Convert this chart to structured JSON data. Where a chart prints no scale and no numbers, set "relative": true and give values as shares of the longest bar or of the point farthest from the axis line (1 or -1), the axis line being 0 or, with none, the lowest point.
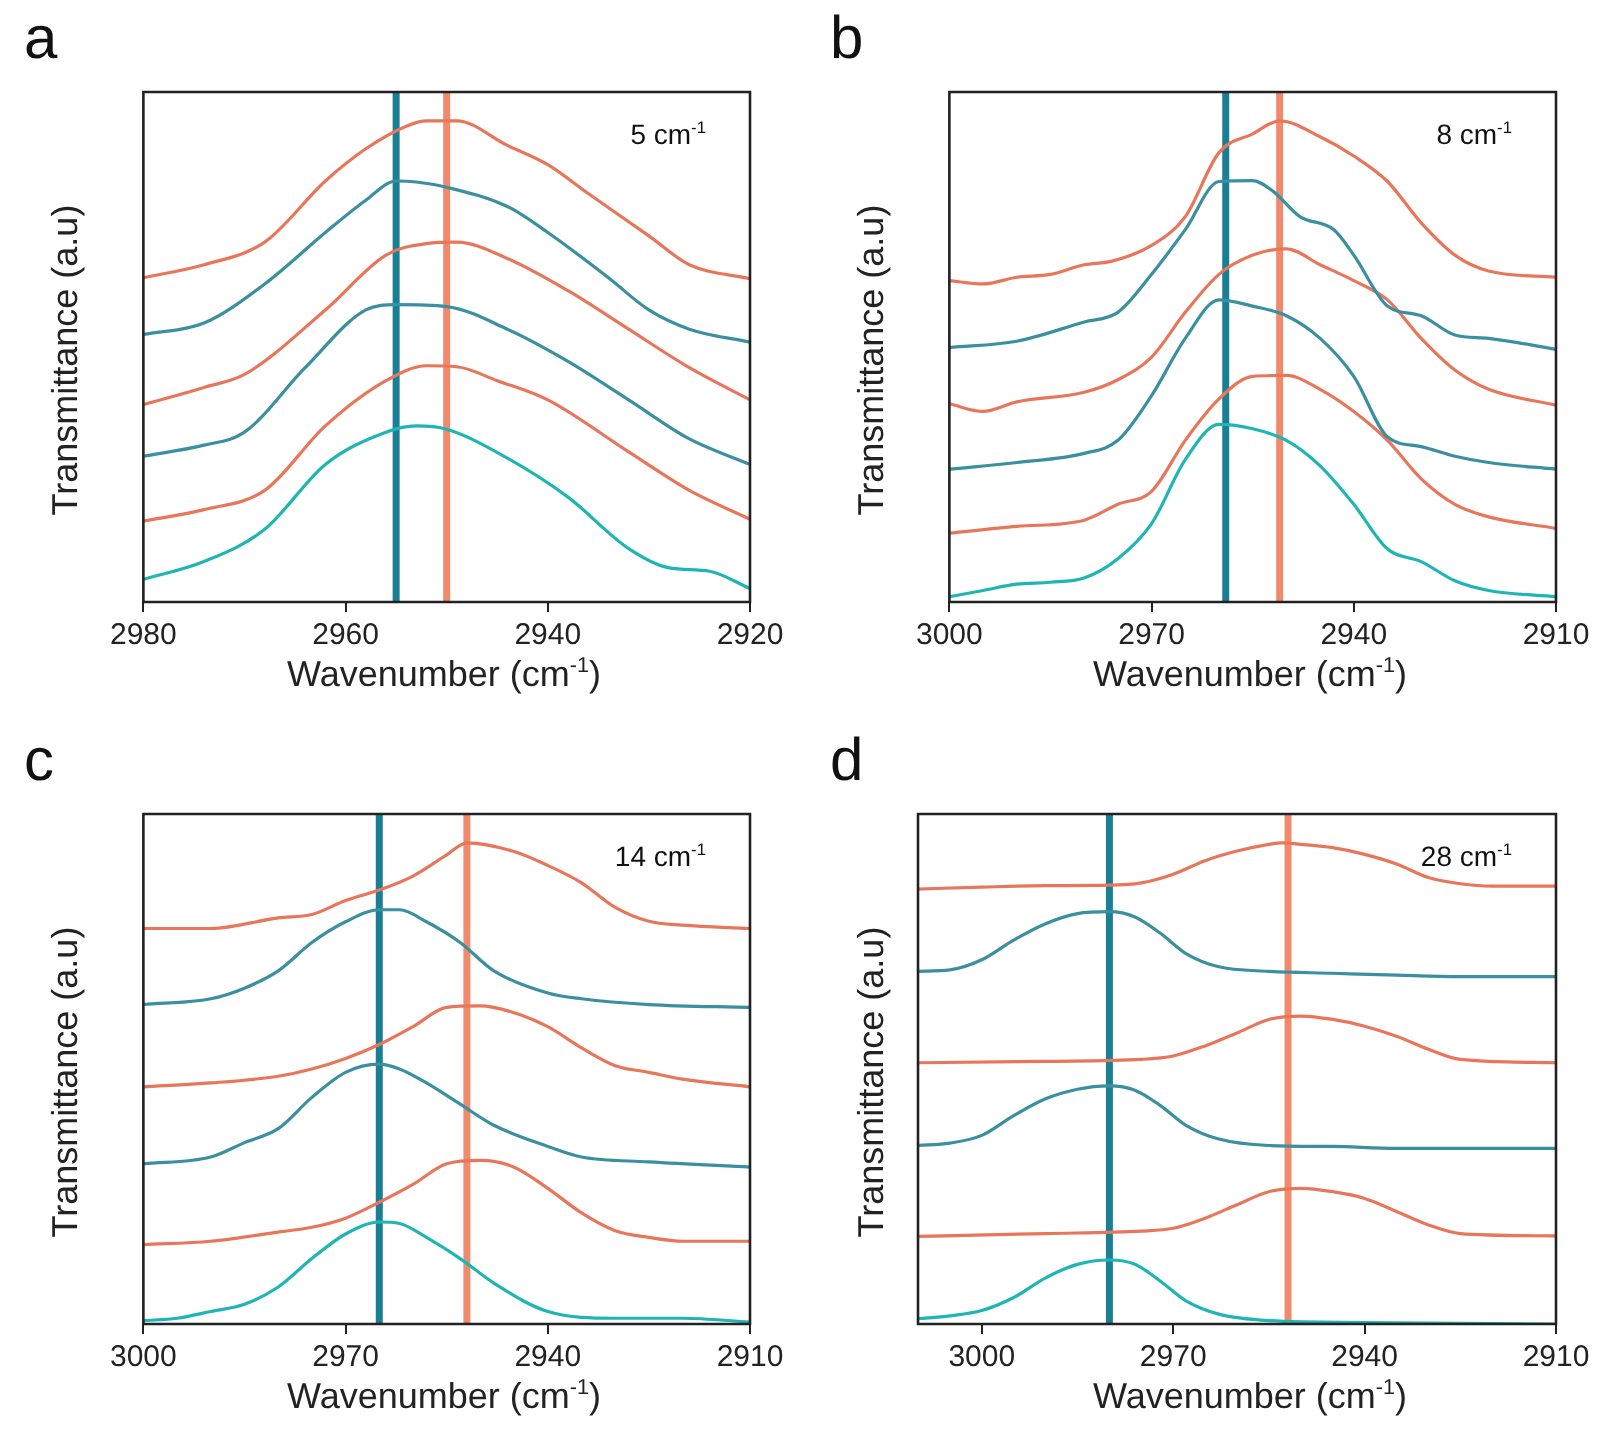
{
  "chart_data": [
    {
      "type": "line",
      "title": "a",
      "xlabel": "Wavenumber (cm$^{-1}$)",
      "ylabel": "Transmittance (a.u)",
      "relative": true,
      "xlim": [
        2980,
        2920
      ],
      "xticks": [
        2980,
        2960,
        2940,
        2920
      ],
      "grid": false,
      "legend": false,
      "marker": "none",
      "line_style": "solid",
      "annotations": [
        "5 cm$^{-1}$"
      ],
      "ref_lines": [
        {
          "axis": "x",
          "value": 2955,
          "color": "#1a7f95"
        },
        {
          "axis": "x",
          "value": 2950,
          "color": "#f08a6c"
        }
      ],
      "series": [
        {
          "color": "#e8765a",
          "x": [
            2980,
            2974,
            2968,
            2962,
            2958,
            2954,
            2952,
            2949,
            2944,
            2940,
            2936,
            2930,
            2926,
            2920
          ],
          "values": [
            0.674,
            0.701,
            0.748,
            0.875,
            0.942,
            0.989,
            1,
            1,
            0.949,
            0.909,
            0.849,
            0.761,
            0.701,
            0.672
          ]
        },
        {
          "color": "#3a8fa0",
          "x": [
            2980,
            2974,
            2968,
            2962,
            2958,
            2955,
            2953,
            2950,
            2944,
            2940,
            2934,
            2930,
            2926,
            2920
          ],
          "values": [
            0.556,
            0.58,
            0.661,
            0.768,
            0.835,
            0.875,
            0.873,
            0.862,
            0.822,
            0.768,
            0.674,
            0.607,
            0.567,
            0.54
          ]
        },
        {
          "color": "#e8765a",
          "x": [
            2980,
            2974,
            2970,
            2962,
            2956,
            2952,
            2949,
            2944,
            2938,
            2932,
            2926,
            2920
          ],
          "values": [
            0.41,
            0.446,
            0.473,
            0.607,
            0.721,
            0.745,
            0.748,
            0.714,
            0.647,
            0.567,
            0.487,
            0.42
          ]
        },
        {
          "color": "#3a8fa0",
          "x": [
            2980,
            2974,
            2970,
            2964,
            2958,
            2955,
            2950,
            2944,
            2938,
            2932,
            2926,
            2920
          ],
          "values": [
            0.303,
            0.326,
            0.353,
            0.487,
            0.607,
            0.618,
            0.614,
            0.567,
            0.5,
            0.42,
            0.339,
            0.286
          ]
        },
        {
          "color": "#e8765a",
          "x": [
            2980,
            2974,
            2968,
            2962,
            2956,
            2952,
            2949,
            2945,
            2940,
            2932,
            2926,
            2920
          ],
          "values": [
            0.168,
            0.192,
            0.232,
            0.366,
            0.46,
            0.491,
            0.489,
            0.46,
            0.42,
            0.312,
            0.232,
            0.172
          ]
        },
        {
          "color": "#1fb5b5",
          "x": [
            2980,
            2974,
            2968,
            2962,
            2956,
            2953,
            2950,
            2944,
            2938,
            2932,
            2928,
            2924,
            2920
          ],
          "values": [
            0.047,
            0.084,
            0.151,
            0.286,
            0.353,
            0.366,
            0.359,
            0.299,
            0.218,
            0.111,
            0.071,
            0.064,
            0.028
          ]
        }
      ]
    },
    {
      "type": "line",
      "title": "b",
      "xlabel": "Wavenumber (cm$^{-1}$)",
      "ylabel": "Transmittance (a.u)",
      "relative": true,
      "xlim": [
        3000,
        2910
      ],
      "xticks": [
        3000,
        2970,
        2940,
        2910
      ],
      "grid": false,
      "legend": false,
      "marker": "none",
      "line_style": "solid",
      "annotations": [
        "8 cm$^{-1}$"
      ],
      "ref_lines": [
        {
          "axis": "x",
          "value": 2959,
          "color": "#1a7f95"
        },
        {
          "axis": "x",
          "value": 2951,
          "color": "#f08a6c"
        }
      ],
      "series": [
        {
          "color": "#e8765a",
          "x": [
            3000,
            2995,
            2990,
            2985,
            2980,
            2976,
            2970,
            2965,
            2960,
            2955,
            2951,
            2945,
            2940,
            2935,
            2930,
            2925,
            2920,
            2910
          ],
          "values": [
            0.668,
            0.661,
            0.675,
            0.681,
            0.701,
            0.708,
            0.741,
            0.801,
            0.934,
            0.973,
            1,
            0.967,
            0.927,
            0.874,
            0.788,
            0.721,
            0.688,
            0.675
          ]
        },
        {
          "color": "#3a8fa0",
          "x": [
            3000,
            2990,
            2980,
            2975,
            2970,
            2965,
            2960,
            2955,
            2952,
            2948,
            2943,
            2940,
            2935,
            2930,
            2925,
            2920,
            2910
          ],
          "values": [
            0.529,
            0.542,
            0.582,
            0.602,
            0.681,
            0.774,
            0.874,
            0.876,
            0.854,
            0.801,
            0.774,
            0.721,
            0.615,
            0.595,
            0.555,
            0.548,
            0.525
          ]
        },
        {
          "color": "#e8765a",
          "x": [
            3000,
            2995,
            2990,
            2980,
            2975,
            2970,
            2965,
            2960,
            2955,
            2950,
            2945,
            2940,
            2935,
            2930,
            2925,
            2920,
            2910
          ],
          "values": [
            0.412,
            0.396,
            0.416,
            0.436,
            0.462,
            0.509,
            0.602,
            0.681,
            0.721,
            0.734,
            0.701,
            0.668,
            0.628,
            0.548,
            0.482,
            0.442,
            0.409
          ]
        },
        {
          "color": "#3a8fa0",
          "x": [
            3000,
            2990,
            2980,
            2975,
            2970,
            2965,
            2960,
            2955,
            2950,
            2945,
            2940,
            2935,
            2930,
            2925,
            2920,
            2910
          ],
          "values": [
            0.276,
            0.29,
            0.309,
            0.336,
            0.429,
            0.548,
            0.628,
            0.615,
            0.595,
            0.548,
            0.469,
            0.343,
            0.323,
            0.303,
            0.29,
            0.276
          ]
        },
        {
          "color": "#e8765a",
          "x": [
            3000,
            2990,
            2980,
            2975,
            2970,
            2965,
            2960,
            2955,
            2950,
            2945,
            2940,
            2935,
            2930,
            2925,
            2920,
            2910
          ],
          "values": [
            0.143,
            0.157,
            0.17,
            0.203,
            0.23,
            0.336,
            0.422,
            0.469,
            0.471,
            0.442,
            0.396,
            0.336,
            0.256,
            0.203,
            0.177,
            0.153
          ]
        },
        {
          "color": "#1fb5b5",
          "x": [
            3000,
            2995,
            2990,
            2985,
            2980,
            2975,
            2970,
            2965,
            2960,
            2955,
            2950,
            2945,
            2940,
            2935,
            2930,
            2925,
            2920,
            2910
          ],
          "values": [
            0.011,
            0.024,
            0.037,
            0.041,
            0.05,
            0.09,
            0.163,
            0.296,
            0.369,
            0.36,
            0.336,
            0.283,
            0.203,
            0.11,
            0.084,
            0.044,
            0.024,
            0.011
          ]
        }
      ]
    },
    {
      "type": "line",
      "title": "c",
      "xlabel": "Wavenumber (cm$^{-1}$)",
      "ylabel": "Transmittance (a.u)",
      "relative": true,
      "xlim": [
        3000,
        2910
      ],
      "xticks": [
        3000,
        2970,
        2940,
        2910
      ],
      "grid": false,
      "legend": false,
      "marker": "none",
      "line_style": "solid",
      "annotations": [
        "14 cm$^{-1}$"
      ],
      "ref_lines": [
        {
          "axis": "x",
          "value": 2965,
          "color": "#1a7f95"
        },
        {
          "axis": "x",
          "value": 2952,
          "color": "#f08a6c"
        }
      ],
      "series": [
        {
          "color": "#e8765a",
          "x": [
            3000,
            2990,
            2980,
            2975,
            2970,
            2965,
            2960,
            2955,
            2952,
            2945,
            2940,
            2935,
            2930,
            2925,
            2920,
            2910
          ],
          "values": [
            0.822,
            0.822,
            0.844,
            0.851,
            0.88,
            0.902,
            0.931,
            0.975,
            1,
            0.982,
            0.953,
            0.917,
            0.866,
            0.837,
            0.829,
            0.822
          ]
        },
        {
          "color": "#3a8fa0",
          "x": [
            3000,
            2990,
            2985,
            2980,
            2975,
            2970,
            2965,
            2962,
            2958,
            2953,
            2948,
            2940,
            2935,
            2925,
            2910
          ],
          "values": [
            0.664,
            0.676,
            0.698,
            0.734,
            0.793,
            0.836,
            0.861,
            0.861,
            0.836,
            0.793,
            0.734,
            0.688,
            0.676,
            0.664,
            0.658
          ]
        },
        {
          "color": "#e8765a",
          "x": [
            3000,
            2990,
            2980,
            2975,
            2970,
            2965,
            2960,
            2955,
            2950,
            2945,
            2940,
            2935,
            2930,
            2925,
            2920,
            2910
          ],
          "values": [
            0.493,
            0.501,
            0.515,
            0.53,
            0.552,
            0.581,
            0.618,
            0.658,
            0.661,
            0.647,
            0.618,
            0.574,
            0.537,
            0.523,
            0.509,
            0.493
          ]
        },
        {
          "color": "#3a8fa0",
          "x": [
            3000,
            2990,
            2985,
            2980,
            2975,
            2970,
            2965,
            2962,
            2958,
            2953,
            2948,
            2940,
            2935,
            2925,
            2910
          ],
          "values": [
            0.333,
            0.347,
            0.377,
            0.406,
            0.471,
            0.523,
            0.54,
            0.53,
            0.501,
            0.457,
            0.413,
            0.369,
            0.347,
            0.337,
            0.326
          ]
        },
        {
          "color": "#e8765a",
          "x": [
            3000,
            2990,
            2980,
            2975,
            2970,
            2965,
            2960,
            2955,
            2950,
            2945,
            2940,
            2935,
            2930,
            2925,
            2920,
            2910
          ],
          "values": [
            0.165,
            0.172,
            0.191,
            0.201,
            0.22,
            0.253,
            0.29,
            0.333,
            0.34,
            0.326,
            0.282,
            0.231,
            0.194,
            0.18,
            0.172,
            0.172
          ]
        },
        {
          "color": "#1fb5b5",
          "x": [
            3000,
            2995,
            2990,
            2985,
            2980,
            2975,
            2970,
            2965,
            2962,
            2958,
            2953,
            2948,
            2940,
            2930,
            2920,
            2910
          ],
          "values": [
            0.007,
            0.012,
            0.026,
            0.041,
            0.077,
            0.136,
            0.187,
            0.212,
            0.209,
            0.18,
            0.136,
            0.085,
            0.026,
            0.012,
            0.012,
            0.004
          ]
        }
      ]
    },
    {
      "type": "line",
      "title": "d",
      "xlabel": "Wavenumber (cm$^{-1}$)",
      "ylabel": "Transmittance (a.u)",
      "relative": true,
      "xlim": [
        3010,
        2910
      ],
      "xticks": [
        3000,
        2970,
        2940,
        2910
      ],
      "grid": false,
      "legend": false,
      "marker": "none",
      "line_style": "solid",
      "annotations": [
        "28 cm$^{-1}$"
      ],
      "ref_lines": [
        {
          "axis": "x",
          "value": 2980,
          "color": "#1a7f95"
        },
        {
          "axis": "x",
          "value": 2952,
          "color": "#f08a6c"
        }
      ],
      "series": [
        {
          "color": "#e8765a",
          "x": [
            3010,
            3000,
            2990,
            2980,
            2975,
            2970,
            2965,
            2960,
            2955,
            2953,
            2950,
            2945,
            2940,
            2935,
            2930,
            2925,
            2920,
            2910
          ],
          "values": [
            0.904,
            0.908,
            0.911,
            0.912,
            0.917,
            0.935,
            0.963,
            0.983,
            0.997,
            1,
            0.997,
            0.99,
            0.976,
            0.956,
            0.928,
            0.915,
            0.91,
            0.91
          ]
        },
        {
          "color": "#3a8fa0",
          "x": [
            3010,
            3005,
            3000,
            2995,
            2990,
            2985,
            2980,
            2976,
            2972,
            2968,
            2963,
            2955,
            2945,
            2935,
            2925,
            2910
          ],
          "values": [
            0.733,
            0.736,
            0.757,
            0.798,
            0.832,
            0.853,
            0.857,
            0.846,
            0.812,
            0.77,
            0.743,
            0.733,
            0.729,
            0.725,
            0.722,
            0.722
          ]
        },
        {
          "color": "#e8765a",
          "x": [
            3010,
            2990,
            2975,
            2970,
            2965,
            2960,
            2955,
            2950,
            2945,
            2940,
            2935,
            2930,
            2925,
            2910
          ],
          "values": [
            0.543,
            0.546,
            0.55,
            0.557,
            0.578,
            0.605,
            0.633,
            0.64,
            0.633,
            0.619,
            0.598,
            0.571,
            0.55,
            0.543
          ]
        },
        {
          "color": "#3a8fa0",
          "x": [
            3010,
            3005,
            3000,
            2995,
            2990,
            2985,
            2980,
            2976,
            2972,
            2968,
            2963,
            2955,
            2945,
            2935,
            2910
          ],
          "values": [
            0.371,
            0.376,
            0.392,
            0.433,
            0.468,
            0.488,
            0.495,
            0.486,
            0.454,
            0.413,
            0.385,
            0.371,
            0.369,
            0.365,
            0.365
          ]
        },
        {
          "color": "#e8765a",
          "x": [
            3010,
            2990,
            2975,
            2970,
            2965,
            2960,
            2955,
            2950,
            2945,
            2940,
            2935,
            2930,
            2925,
            2910
          ],
          "values": [
            0.182,
            0.188,
            0.193,
            0.199,
            0.22,
            0.248,
            0.275,
            0.282,
            0.275,
            0.261,
            0.234,
            0.206,
            0.188,
            0.183
          ]
        },
        {
          "color": "#1fb5b5",
          "x": [
            3010,
            3005,
            3000,
            2995,
            2990,
            2985,
            2980,
            2976,
            2972,
            2968,
            2963,
            2955,
            2940,
            2910
          ],
          "values": [
            0.011,
            0.017,
            0.028,
            0.055,
            0.096,
            0.124,
            0.133,
            0.124,
            0.089,
            0.048,
            0.021,
            0.007,
            0.003,
            0
          ]
        }
      ]
    }
  ]
}
